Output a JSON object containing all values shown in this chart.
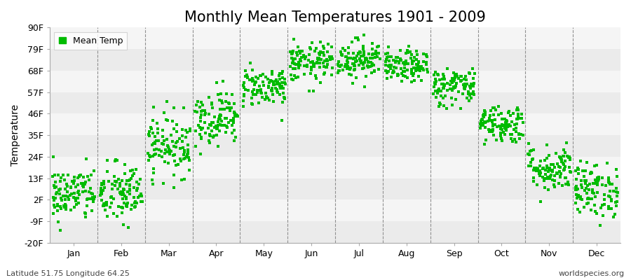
{
  "title": "Monthly Mean Temperatures 1901 - 2009",
  "ylabel": "Temperature",
  "xlabel": "",
  "ytick_values": [
    -20,
    -9,
    2,
    13,
    24,
    35,
    46,
    57,
    68,
    79,
    90
  ],
  "ytick_labels": [
    "-20F",
    "-9F",
    "2F",
    "13F",
    "24F",
    "35F",
    "46F",
    "57F",
    "68F",
    "79F",
    "90F"
  ],
  "ylim": [
    -20,
    90
  ],
  "months": [
    "Jan",
    "Feb",
    "Mar",
    "Apr",
    "May",
    "Jun",
    "Jul",
    "Aug",
    "Sep",
    "Oct",
    "Nov",
    "Dec"
  ],
  "dot_color": "#00bb00",
  "dot_size": 5,
  "background_color": "#ffffff",
  "band_color_odd": "#ebebeb",
  "band_color_even": "#f5f5f5",
  "legend_label": "Mean Temp",
  "footer_left": "Latitude 51.75 Longitude 64.25",
  "footer_right": "worldspecies.org",
  "title_fontsize": 15,
  "axis_fontsize": 9,
  "footer_fontsize": 8,
  "monthly_means_F": [
    5,
    5,
    30,
    44,
    60,
    72,
    74,
    70,
    60,
    41,
    18,
    7
  ],
  "monthly_stds_F": [
    7,
    8,
    8,
    7,
    5,
    5,
    5,
    4,
    5,
    5,
    6,
    7
  ],
  "n_years": 109,
  "seed": 42
}
